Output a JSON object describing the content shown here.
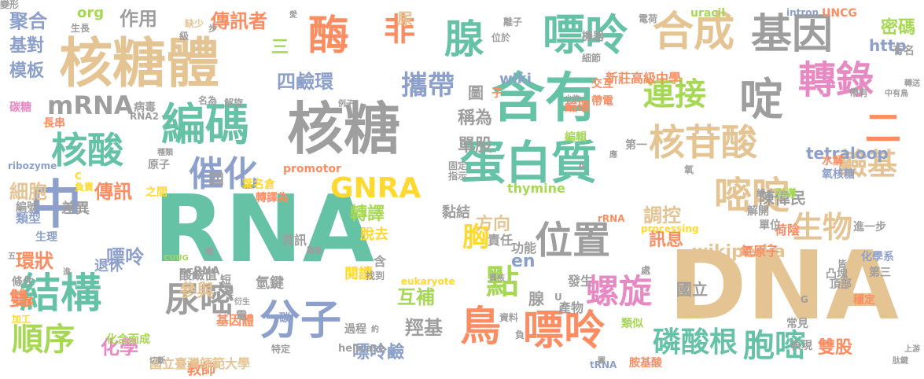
{
  "colors": {
    "teal": "#66c2a5",
    "tan": "#e5c494",
    "gray": "#9e9e9e",
    "orange": "#fc8d62",
    "blue": "#8da0cb",
    "green": "#a6d854",
    "yellow": "#ffd92f",
    "pink": "#e78ac3"
  },
  "words": [
    {
      "t": "RNA",
      "c": "teal"
    },
    {
      "t": "DNA",
      "c": "tan"
    },
    {
      "t": "核糖",
      "c": "gray"
    },
    {
      "t": "核糖體",
      "c": "tan"
    },
    {
      "t": "含有",
      "c": "teal"
    },
    {
      "t": "編碼",
      "c": "teal"
    },
    {
      "t": "中",
      "c": "blue"
    },
    {
      "t": "蛋白質",
      "c": "teal"
    },
    {
      "t": "合成",
      "c": "tan"
    },
    {
      "t": "基因",
      "c": "gray"
    },
    {
      "t": "嘌呤",
      "c": "teal"
    },
    {
      "t": "核苷酸",
      "c": "tan"
    },
    {
      "t": "位置",
      "c": "gray"
    },
    {
      "t": "鳥",
      "c": "orange"
    },
    {
      "t": "嘌呤",
      "c": "orange"
    },
    {
      "t": "分子",
      "c": "blue"
    },
    {
      "t": "結構",
      "c": "teal"
    },
    {
      "t": "尿嘧",
      "c": "gray"
    },
    {
      "t": "酶",
      "c": "orange"
    },
    {
      "t": "腺",
      "c": "teal"
    },
    {
      "t": "非",
      "c": "orange"
    },
    {
      "t": "核酸",
      "c": "teal"
    },
    {
      "t": "催化",
      "c": "blue"
    },
    {
      "t": "轉錄",
      "c": "pink"
    },
    {
      "t": "連接",
      "c": "green"
    },
    {
      "t": "啶",
      "c": "gray"
    },
    {
      "t": "嘧啶",
      "c": "tan"
    },
    {
      "t": "生物",
      "c": "tan"
    },
    {
      "t": "螺旋",
      "c": "pink"
    },
    {
      "t": "點",
      "c": "green"
    },
    {
      "t": "順序",
      "c": "green"
    },
    {
      "t": "磷酸根",
      "c": "teal"
    },
    {
      "t": "胞嘧",
      "c": "teal"
    },
    {
      "t": "攜帶",
      "c": "blue"
    },
    {
      "t": "GNRA",
      "c": "yellow"
    },
    {
      "t": "mRNA",
      "c": "gray"
    },
    {
      "t": "鹼基",
      "c": "tan"
    },
    {
      "t": "二",
      "c": "orange"
    },
    {
      "t": "四鹼環",
      "c": "blue"
    },
    {
      "t": "傳訊者",
      "c": "orange"
    },
    {
      "t": "作用",
      "c": "gray"
    },
    {
      "t": "聚合",
      "c": "blue"
    },
    {
      "t": "基對",
      "c": "blue"
    },
    {
      "t": "模板",
      "c": "blue"
    },
    {
      "t": "調控",
      "c": "tan"
    },
    {
      "t": "細胞",
      "c": "tan"
    },
    {
      "t": "傳訊",
      "c": "orange"
    },
    {
      "t": "環狀",
      "c": "orange"
    },
    {
      "t": "嘌呤",
      "c": "blue"
    },
    {
      "t": "雙",
      "c": "orange"
    },
    {
      "t": "化學",
      "c": "pink"
    },
    {
      "t": "參與",
      "c": "tan"
    },
    {
      "t": "互補",
      "c": "green"
    },
    {
      "t": "羥基",
      "c": "gray"
    },
    {
      "t": "嘌呤鹼",
      "c": "blue"
    },
    {
      "t": "單股",
      "c": "gray"
    },
    {
      "t": "稱為",
      "c": "gray"
    },
    {
      "t": "胸",
      "c": "yellow"
    },
    {
      "t": "方向",
      "c": "tan"
    },
    {
      "t": "訊息",
      "c": "orange"
    },
    {
      "t": "wikipedia",
      "c": "tan"
    },
    {
      "t": "tetraloop",
      "c": "blue"
    },
    {
      "t": "雙股",
      "c": "orange"
    },
    {
      "t": "轉譯",
      "c": "green"
    },
    {
      "t": "http",
      "c": "blue"
    },
    {
      "t": "en",
      "c": "blue"
    },
    {
      "t": "圖",
      "c": "gray"
    },
    {
      "t": "wiki",
      "c": "blue"
    },
    {
      "t": "尿",
      "c": "tan"
    },
    {
      "t": "三",
      "c": "green"
    },
    {
      "t": "四",
      "c": "gray"
    },
    {
      "t": "org",
      "c": "green"
    },
    {
      "t": "腺",
      "c": "gray"
    },
    {
      "t": "陳偉民",
      "c": "gray"
    },
    {
      "t": "教師",
      "c": "orange"
    },
    {
      "t": "新莊高級中學",
      "c": "orange"
    },
    {
      "t": "uracil",
      "c": "green"
    },
    {
      "t": "thymine",
      "c": "green"
    },
    {
      "t": "UNCG",
      "c": "orange"
    },
    {
      "t": "intron",
      "c": "blue"
    },
    {
      "t": "eukaryote",
      "c": "yellow"
    },
    {
      "t": "promotor",
      "c": "orange"
    },
    {
      "t": "processing",
      "c": "yellow"
    },
    {
      "t": "helicase",
      "c": "gray"
    },
    {
      "t": "ribozyme",
      "c": "blue"
    },
    {
      "t": "ncRNA",
      "c": "gray"
    },
    {
      "t": "tRNA",
      "c": "blue"
    },
    {
      "t": "rRNA",
      "c": "orange"
    },
    {
      "t": "CUUG",
      "c": "green"
    },
    {
      "t": "國立臺灣師範大學",
      "c": "tan"
    },
    {
      "t": "國立",
      "c": "gray"
    },
    {
      "t": "退休",
      "c": "blue"
    },
    {
      "t": "差異",
      "c": "gray"
    },
    {
      "t": "生理",
      "c": "blue"
    },
    {
      "t": "類型",
      "c": "blue"
    },
    {
      "t": "編號",
      "c": "gray"
    },
    {
      "t": "化合而成",
      "c": "green"
    },
    {
      "t": "甲基",
      "c": "orange"
    },
    {
      "t": "條件",
      "c": "gray"
    },
    {
      "t": "加工",
      "c": "yellow"
    },
    {
      "t": "酸鹼值",
      "c": "gray"
    },
    {
      "t": "氫鍵",
      "c": "gray"
    },
    {
      "t": "基因體",
      "c": "orange"
    },
    {
      "t": "閱讀",
      "c": "yellow"
    },
    {
      "t": "脫去",
      "c": "yellow"
    },
    {
      "t": "資訊",
      "c": "gray"
    },
    {
      "t": "功能",
      "c": "gray"
    },
    {
      "t": "發生",
      "c": "gray"
    },
    {
      "t": "產物",
      "c": "gray"
    },
    {
      "t": "責任",
      "c": "gray"
    },
    {
      "t": "黏結",
      "c": "gray"
    },
    {
      "t": "編輯",
      "c": "green"
    },
    {
      "t": "鹼環",
      "c": "orange"
    },
    {
      "t": "第一",
      "c": "gray"
    },
    {
      "t": "氧核糖",
      "c": "blue"
    },
    {
      "t": "水解",
      "c": "orange"
    },
    {
      "t": "引導",
      "c": "green"
    },
    {
      "t": "解開",
      "c": "gray"
    },
    {
      "t": "荷陰",
      "c": "orange"
    },
    {
      "t": "單位",
      "c": "gray"
    },
    {
      "t": "進一步",
      "c": "gray"
    },
    {
      "t": "氧原子",
      "c": "orange"
    },
    {
      "t": "化學系",
      "c": "blue"
    },
    {
      "t": "第三",
      "c": "gray"
    },
    {
      "t": "頂部",
      "c": "gray"
    },
    {
      "t": "凸塊",
      "c": "gray"
    },
    {
      "t": "穩定",
      "c": "orange"
    },
    {
      "t": "常見",
      "c": "gray"
    },
    {
      "t": "表現",
      "c": "gray"
    },
    {
      "t": "類似",
      "c": "green"
    },
    {
      "t": "過程",
      "c": "gray"
    },
    {
      "t": "胺基酸",
      "c": "orange"
    },
    {
      "t": "切斷",
      "c": "gray"
    },
    {
      "t": "碳",
      "c": "blue"
    },
    {
      "t": "轉譯為",
      "c": "orange"
    },
    {
      "t": "葉名倉",
      "c": "yellow"
    },
    {
      "t": "之間",
      "c": "yellow"
    },
    {
      "t": "原子",
      "c": "gray"
    },
    {
      "t": "種類",
      "c": "gray"
    },
    {
      "t": "負責",
      "c": "yellow"
    },
    {
      "t": "病毒",
      "c": "gray"
    },
    {
      "t": "長串",
      "c": "orange"
    },
    {
      "t": "碳糖",
      "c": "pink"
    },
    {
      "t": "生長",
      "c": "gray"
    },
    {
      "t": "缺少",
      "c": "tan"
    },
    {
      "t": "級",
      "c": "gray"
    },
    {
      "t": "離子",
      "c": "gray"
    },
    {
      "t": "位於",
      "c": "gray"
    },
    {
      "t": "機器",
      "c": "gray"
    },
    {
      "t": "細節",
      "c": "gray"
    },
    {
      "t": "交互",
      "c": "orange"
    },
    {
      "t": "帶電",
      "c": "orange"
    },
    {
      "t": "少許",
      "c": "gray"
    },
    {
      "t": "電荷",
      "c": "gray"
    },
    {
      "t": "終止",
      "c": "gray"
    },
    {
      "t": "帶有",
      "c": "gray"
    },
    {
      "t": "中有鳥",
      "c": "gray"
    },
    {
      "t": "有名",
      "c": "gray"
    },
    {
      "t": "密碼",
      "c": "green"
    },
    {
      "t": "子",
      "c": "orange"
    },
    {
      "t": "名為",
      "c": "gray"
    },
    {
      "t": "解旋",
      "c": "gray"
    },
    {
      "t": "例子",
      "c": "gray"
    },
    {
      "t": "固定",
      "c": "gray"
    },
    {
      "t": "指示",
      "c": "gray"
    },
    {
      "t": "找到",
      "c": "gray"
    },
    {
      "t": "短",
      "c": "gray"
    },
    {
      "t": "電",
      "c": "gray"
    },
    {
      "t": "鏈",
      "c": "gray"
    },
    {
      "t": "學",
      "c": "gray"
    },
    {
      "t": "衍生",
      "c": "gray"
    },
    {
      "t": "特定",
      "c": "gray"
    },
    {
      "t": "醫素",
      "c": "gray"
    },
    {
      "t": "約",
      "c": "gray"
    },
    {
      "t": "資料",
      "c": "gray"
    },
    {
      "t": "負",
      "c": "gray"
    },
    {
      "t": "異核",
      "c": "gray"
    },
    {
      "t": "團",
      "c": "gray"
    },
    {
      "t": "肽鍵",
      "c": "gray"
    },
    {
      "t": "上游",
      "c": "gray"
    },
    {
      "t": "皆",
      "c": "gray"
    },
    {
      "t": "處",
      "c": "gray"
    },
    {
      "t": "氧",
      "c": "gray"
    },
    {
      "t": "應",
      "c": "gray"
    },
    {
      "t": "步",
      "c": "gray"
    },
    {
      "t": "愛",
      "c": "gray"
    },
    {
      "t": "RNA2",
      "c": "gray"
    },
    {
      "t": "五",
      "c": "gray"
    },
    {
      "t": "進",
      "c": "gray"
    },
    {
      "t": "轉送",
      "c": "gray"
    },
    {
      "t": "含",
      "c": "gray"
    },
    {
      "t": "C",
      "c": "yellow"
    },
    {
      "t": "A",
      "c": "gray"
    },
    {
      "t": "U",
      "c": "gray"
    },
    {
      "t": "G",
      "c": "gray"
    },
    {
      "t": "變形",
      "c": "gray"
    }
  ]
}
